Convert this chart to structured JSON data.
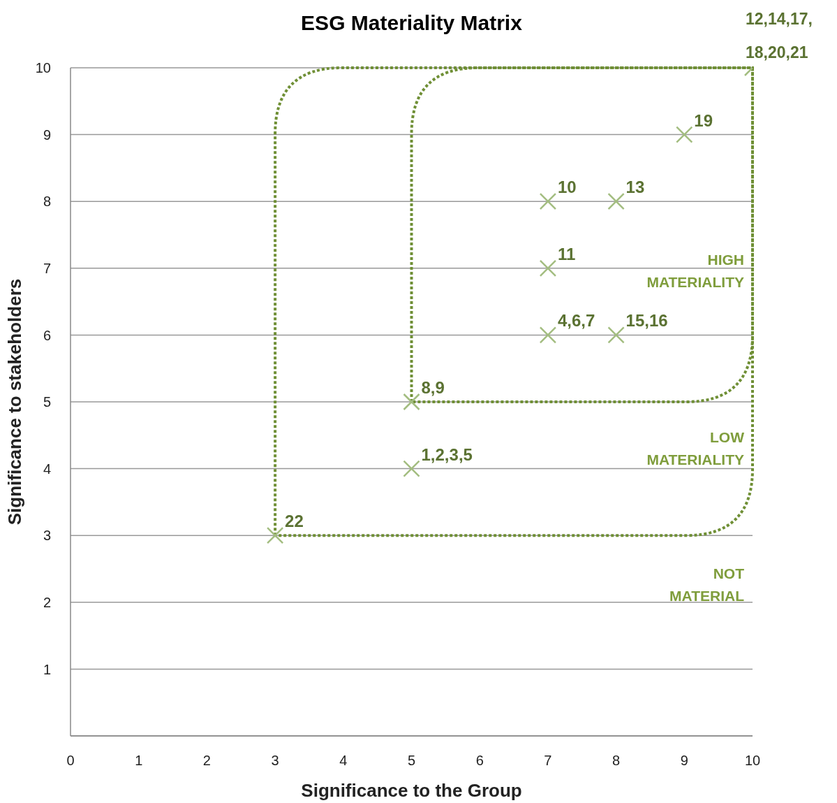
{
  "chart_data": {
    "type": "scatter",
    "title": "ESG Materiality Matrix",
    "xlabel": "Significance to the Group",
    "ylabel": "Significance to stakeholders",
    "series": [
      {
        "name": "22",
        "color": "#a3bd80",
        "x": [
          3
        ],
        "values": [
          3
        ]
      },
      {
        "name": "1,2,3,5",
        "color": "#a3bd80",
        "x": [
          5
        ],
        "values": [
          4
        ]
      },
      {
        "name": "8,9",
        "color": "#a3bd80",
        "x": [
          5
        ],
        "values": [
          5
        ]
      },
      {
        "name": "4,6,7",
        "color": "#a3bd80",
        "x": [
          7
        ],
        "values": [
          6
        ]
      },
      {
        "name": "15,16",
        "color": "#a3bd80",
        "x": [
          8
        ],
        "values": [
          6
        ]
      },
      {
        "name": "11",
        "color": "#a3bd80",
        "x": [
          7
        ],
        "values": [
          7
        ]
      },
      {
        "name": "10",
        "color": "#a3bd80",
        "x": [
          7
        ],
        "values": [
          8
        ]
      },
      {
        "name": "13",
        "color": "#a3bd80",
        "x": [
          8
        ],
        "values": [
          8
        ]
      },
      {
        "name": "19",
        "color": "#a3bd80",
        "x": [
          9
        ],
        "values": [
          9
        ]
      },
      {
        "name": "12,14,17,18,20,21",
        "color": "#a3bd80",
        "x": [
          10
        ],
        "values": [
          10
        ]
      }
    ],
    "marker": "cross",
    "xlim": [
      0,
      10
    ],
    "xticks": [
      0,
      1,
      2,
      3,
      4,
      5,
      6,
      7,
      8,
      9,
      10
    ],
    "ylim": [
      0,
      10
    ],
    "yticks": [
      1,
      2,
      3,
      4,
      5,
      6,
      7,
      8,
      9,
      10
    ],
    "grid": "y",
    "annotations": [
      "HIGH MATERIALITY",
      "LOW MATERIALITY",
      "NOT MATERIAL"
    ]
  }
}
